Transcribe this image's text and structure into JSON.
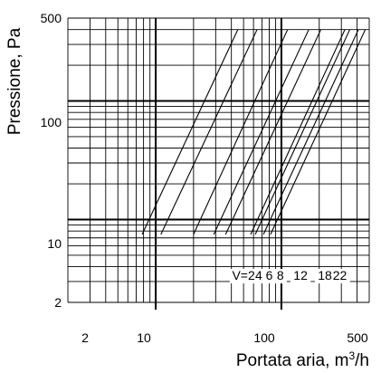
{
  "chart_data": {
    "type": "line",
    "x_scale": "log",
    "y_scale": "log",
    "xlim": [
      2,
      500
    ],
    "ylim": [
      2,
      500
    ],
    "grid": true,
    "xlabel": "Portata aria, m",
    "xlabel_sup": "3",
    "xlabel_tail": "/h",
    "ylabel": "Pressione, Pa",
    "x_ticks": [
      {
        "value": 2,
        "label": "2"
      },
      {
        "value": 10,
        "label": "10"
      },
      {
        "value": 100,
        "label": "100"
      },
      {
        "value": 500,
        "label": "500"
      }
    ],
    "y_ticks": [
      {
        "value": 2,
        "label": "2"
      },
      {
        "value": 10,
        "label": "10"
      },
      {
        "value": 100,
        "label": "100"
      },
      {
        "value": 500,
        "label": "500"
      }
    ],
    "series_labels": [
      "V=2",
      "4",
      "6",
      "8",
      "12",
      "18",
      "22"
    ],
    "series": [
      {
        "x": [
          7.8,
          45
        ],
        "y": [
          7.5,
          400
        ]
      },
      {
        "x": [
          11,
          64
        ],
        "y": [
          7.5,
          400
        ]
      },
      {
        "x": [
          20,
          112
        ],
        "y": [
          7.5,
          400
        ]
      },
      {
        "x": [
          29,
          165
        ],
        "y": [
          7.5,
          400
        ]
      },
      {
        "x": [
          36,
          206
        ],
        "y": [
          7.5,
          400
        ]
      },
      {
        "x": [
          57,
          320
        ],
        "y": [
          7.5,
          400
        ]
      },
      {
        "x": [
          62,
          350
        ],
        "y": [
          7.5,
          400
        ]
      },
      {
        "x": [
          72,
          410
        ],
        "y": [
          7.5,
          400
        ]
      },
      {
        "x": [
          82,
          465
        ],
        "y": [
          7.5,
          400
        ]
      }
    ]
  }
}
